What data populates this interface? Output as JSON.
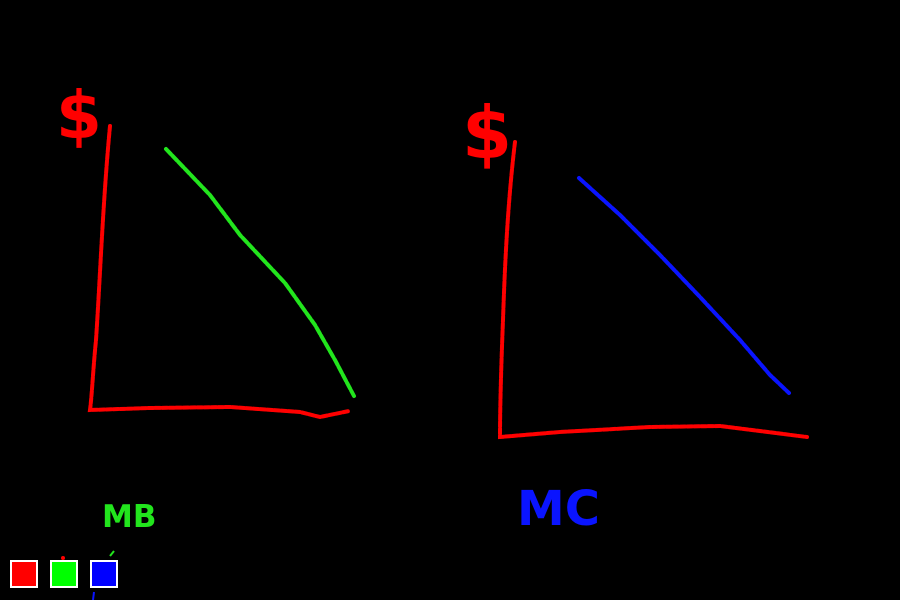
{
  "left_graph": {
    "axis_label": "$",
    "curve_label": "MB",
    "axis_color": "#ff0000",
    "curve_color": "#22e51d"
  },
  "right_graph": {
    "axis_label": "$",
    "curve_label": "MC",
    "axis_color": "#ff0000",
    "curve_color": "#0a14ff"
  },
  "palette": {
    "colors": [
      "#ff0000",
      "#00ff00",
      "#0000ff"
    ],
    "icons": [
      "red-color-swatch",
      "green-color-swatch",
      "blue-color-swatch"
    ]
  }
}
